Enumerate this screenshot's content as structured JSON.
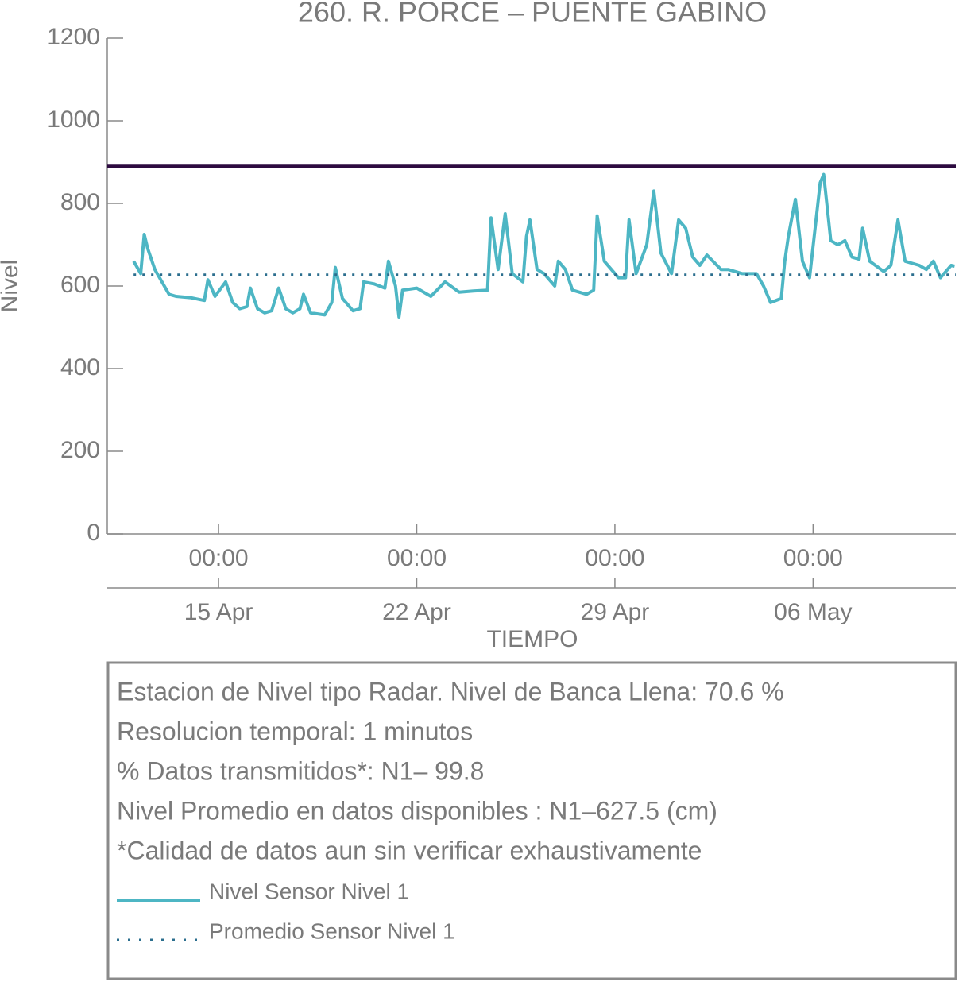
{
  "chart_data": {
    "type": "line",
    "title": "260. R. PORCE – PUENTE GABINO",
    "ylabel": "Nivel",
    "xlabel": "TIEMPO",
    "ylim": [
      0,
      1200
    ],
    "yticks": [
      0,
      200,
      400,
      600,
      800,
      1000,
      1200
    ],
    "xlim": [
      "04-11T01:40",
      "05-11T01:00"
    ],
    "xticks": [
      {
        "value": "04-15T00:00",
        "label": "00:00"
      },
      {
        "value": "04-22T00:00",
        "label": "00:00"
      },
      {
        "value": "04-29T00:00",
        "label": "00:00"
      },
      {
        "value": "05-06T00:00",
        "label": "00:00"
      }
    ],
    "xtick_dates": [
      "15 Apr",
      "22 Apr",
      "29 Apr",
      "06 May"
    ],
    "bankfull_line": {
      "value": 890,
      "color": "#2d0b40"
    },
    "series": [
      {
        "name": "Nivel Sensor Nivel 1",
        "color": "#4db6c4",
        "style": "solid",
        "x": [
          "04-12T00:00",
          "04-12T06:00",
          "04-12T09:00",
          "04-12T12:00",
          "04-12T18:00",
          "04-13T00:00",
          "04-13T06:00",
          "04-13T12:00",
          "04-14T00:00",
          "04-14T12:00",
          "04-14T15:00",
          "04-14T21:00",
          "04-15T06:00",
          "04-15T12:00",
          "04-15T18:00",
          "04-16T00:00",
          "04-16T03:00",
          "04-16T09:00",
          "04-16T15:00",
          "04-16T21:00",
          "04-17T03:00",
          "04-17T09:00",
          "04-17T15:00",
          "04-17T21:00",
          "04-18T00:00",
          "04-18T06:00",
          "04-18T18:00",
          "04-19T00:00",
          "04-19T03:00",
          "04-19T09:00",
          "04-19T18:00",
          "04-20T00:00",
          "04-20T03:00",
          "04-20T12:00",
          "04-20T21:00",
          "04-21T00:00",
          "04-21T06:00",
          "04-21T09:00",
          "04-21T12:00",
          "04-22T00:00",
          "04-22T12:00",
          "04-23T00:00",
          "04-23T12:00",
          "04-24T00:00",
          "04-24T12:00",
          "04-24T15:00",
          "04-24T21:00",
          "04-25T03:00",
          "04-25T09:00",
          "04-25T18:00",
          "04-25T21:00",
          "04-26T00:00",
          "04-26T06:00",
          "04-26T12:00",
          "04-26T21:00",
          "04-27T00:00",
          "04-27T06:00",
          "04-27T12:00",
          "04-28T00:00",
          "04-28T06:00",
          "04-28T09:00",
          "04-28T15:00",
          "04-28T21:00",
          "04-29T03:00",
          "04-29T09:00",
          "04-29T12:00",
          "04-29T18:00",
          "04-30T03:00",
          "04-30T09:00",
          "04-30T15:00",
          "05-01T00:00",
          "05-01T06:00",
          "05-01T12:00",
          "05-01T18:00",
          "05-02T00:00",
          "05-02T06:00",
          "05-02T18:00",
          "05-03T00:00",
          "05-03T12:00",
          "05-04T00:00",
          "05-04T06:00",
          "05-04T12:00",
          "05-04T21:00",
          "05-05T00:00",
          "05-05T03:00",
          "05-05T09:00",
          "05-05T15:00",
          "05-05T21:00",
          "05-06T06:00",
          "05-06T09:00",
          "05-06T15:00",
          "05-06T21:00",
          "05-07T03:00",
          "05-07T09:00",
          "05-07T15:00",
          "05-07T18:00",
          "05-08T00:00",
          "05-08T12:00",
          "05-08T18:00",
          "05-09T00:00",
          "05-09T06:00",
          "05-09T18:00",
          "05-10T00:00",
          "05-10T06:00",
          "05-10T12:00",
          "05-10T21:00",
          "05-11T00:00"
        ],
        "values": [
          660,
          630,
          725,
          690,
          640,
          610,
          580,
          575,
          572,
          565,
          615,
          575,
          610,
          560,
          545,
          550,
          595,
          545,
          535,
          540,
          595,
          545,
          535,
          545,
          580,
          535,
          530,
          560,
          645,
          570,
          540,
          545,
          610,
          605,
          595,
          660,
          600,
          525,
          590,
          595,
          575,
          610,
          585,
          588,
          590,
          765,
          640,
          775,
          630,
          610,
          720,
          760,
          640,
          630,
          600,
          660,
          640,
          590,
          580,
          590,
          770,
          660,
          640,
          620,
          620,
          760,
          630,
          700,
          830,
          680,
          630,
          760,
          740,
          670,
          650,
          675,
          640,
          640,
          630,
          630,
          600,
          560,
          570,
          660,
          720,
          810,
          660,
          620,
          850,
          870,
          710,
          700,
          710,
          670,
          665,
          740,
          660,
          635,
          650,
          760,
          660,
          650,
          640,
          660,
          620,
          650,
          648
        ]
      },
      {
        "name": "Promedio Sensor Nivel 1",
        "color": "#2b6e8e",
        "style": "dotted",
        "x": [
          "04-12T00:00",
          "05-11T01:00"
        ],
        "values": [
          627.5,
          627.5
        ]
      }
    ],
    "notes": [
      "Estacion de Nivel tipo Radar. Nivel de Banca Llena: 70.6 %",
      "Resolucion temporal: 1 minutos",
      "% Datos transmitidos*: N1– 99.8",
      "Nivel Promedio en datos disponibles : N1–627.5 (cm)",
      "*Calidad de datos aun sin verificar exhaustivamente"
    ]
  }
}
